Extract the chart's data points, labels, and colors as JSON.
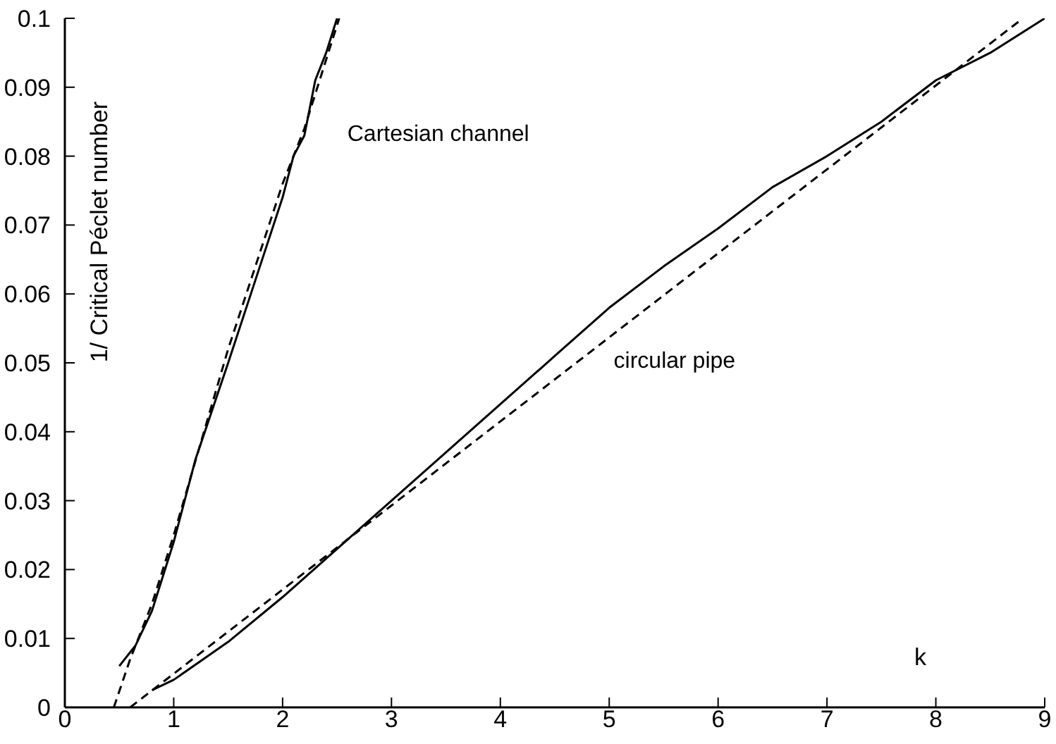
{
  "chart_data": {
    "type": "line",
    "xlabel": "k",
    "ylabel": "1/ Critical Péclet number",
    "xlim": [
      0,
      9
    ],
    "xticks": [
      0,
      1,
      2,
      3,
      4,
      5,
      6,
      7,
      8,
      9
    ],
    "ylim": [
      0,
      0.1
    ],
    "yticks": [
      0,
      0.01,
      0.02,
      0.03,
      0.04,
      0.05,
      0.06,
      0.07,
      0.08,
      0.09,
      0.1
    ],
    "grid": false,
    "legend": false,
    "marker": "none",
    "annotations": [
      "Cartesian channel",
      "circular pipe"
    ],
    "series": [
      {
        "color": "#000000",
        "line_style": "solid",
        "x": [
          0.5,
          0.65,
          0.8,
          1.0,
          1.2,
          1.5,
          1.75,
          2.0,
          2.1,
          2.2,
          2.3,
          2.4,
          2.5
        ],
        "values": [
          0.006,
          0.009,
          0.014,
          0.024,
          0.036,
          0.05,
          0.062,
          0.074,
          0.08,
          0.083,
          0.091,
          0.095,
          0.1
        ]
      },
      {
        "color": "#000000",
        "line_style": "dashed",
        "x": [
          0.45,
          0.6,
          0.8,
          1.0,
          1.5,
          2.0,
          2.2,
          2.52
        ],
        "values": [
          0,
          0.007,
          0.015,
          0.025,
          0.052,
          0.076,
          0.084,
          0.1
        ]
      },
      {
        "color": "#000000",
        "line_style": "solid",
        "x": [
          0.8,
          1.0,
          1.5,
          2,
          2.5,
          3,
          3.5,
          4,
          4.5,
          5,
          5.5,
          6,
          6.5,
          7,
          7.5,
          8,
          8.5,
          9
        ],
        "values": [
          0.0025,
          0.004,
          0.0095,
          0.016,
          0.023,
          0.03,
          0.037,
          0.044,
          0.051,
          0.058,
          0.064,
          0.0695,
          0.0755,
          0.08,
          0.085,
          0.091,
          0.095,
          0.1
        ]
      },
      {
        "color": "#000000",
        "line_style": "dashed",
        "x": [
          0.6,
          3,
          6,
          8.8
        ],
        "values": [
          0,
          0.0293,
          0.0659,
          0.1
        ]
      }
    ]
  }
}
